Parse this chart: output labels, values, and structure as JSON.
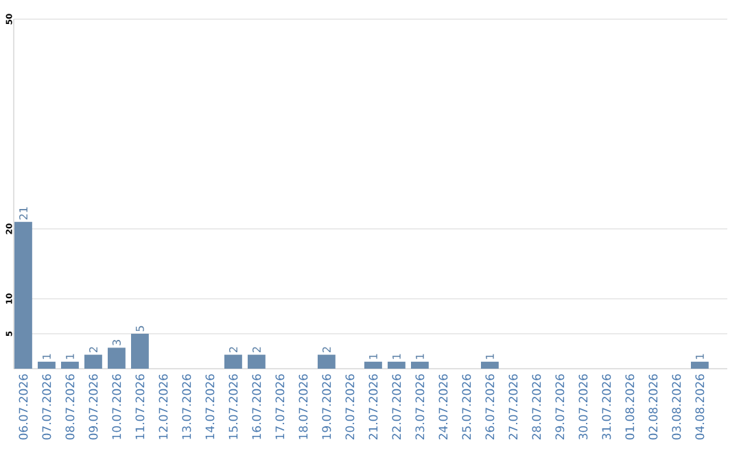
{
  "chart_data": {
    "type": "bar",
    "categories": [
      "06.07.2026",
      "07.07.2026",
      "08.07.2026",
      "09.07.2026",
      "10.07.2026",
      "11.07.2026",
      "12.07.2026",
      "13.07.2026",
      "14.07.2026",
      "15.07.2026",
      "16.07.2026",
      "17.07.2026",
      "18.07.2026",
      "19.07.2026",
      "20.07.2026",
      "21.07.2026",
      "22.07.2026",
      "23.07.2026",
      "24.07.2026",
      "25.07.2026",
      "26.07.2026",
      "27.07.2026",
      "28.07.2026",
      "29.07.2026",
      "30.07.2026",
      "31.07.2026",
      "01.08.2026",
      "02.08.2026",
      "03.08.2026",
      "04.08.2026"
    ],
    "values": [
      21,
      1,
      1,
      2,
      3,
      5,
      0,
      0,
      0,
      2,
      2,
      0,
      0,
      2,
      0,
      1,
      1,
      1,
      0,
      0,
      1,
      0,
      0,
      0,
      0,
      0,
      0,
      0,
      0,
      1
    ],
    "value_labels": [
      "21",
      "1",
      "1",
      "2",
      "3",
      "5",
      null,
      null,
      null,
      "2",
      "2",
      null,
      null,
      "2",
      null,
      "1",
      "1",
      "1",
      null,
      null,
      "1",
      null,
      null,
      null,
      null,
      null,
      null,
      null,
      null,
      "1"
    ],
    "color": "#6b8cae",
    "ylim": [
      0,
      50
    ],
    "yticks": [
      5,
      10,
      20,
      50
    ],
    "grid": "y"
  }
}
